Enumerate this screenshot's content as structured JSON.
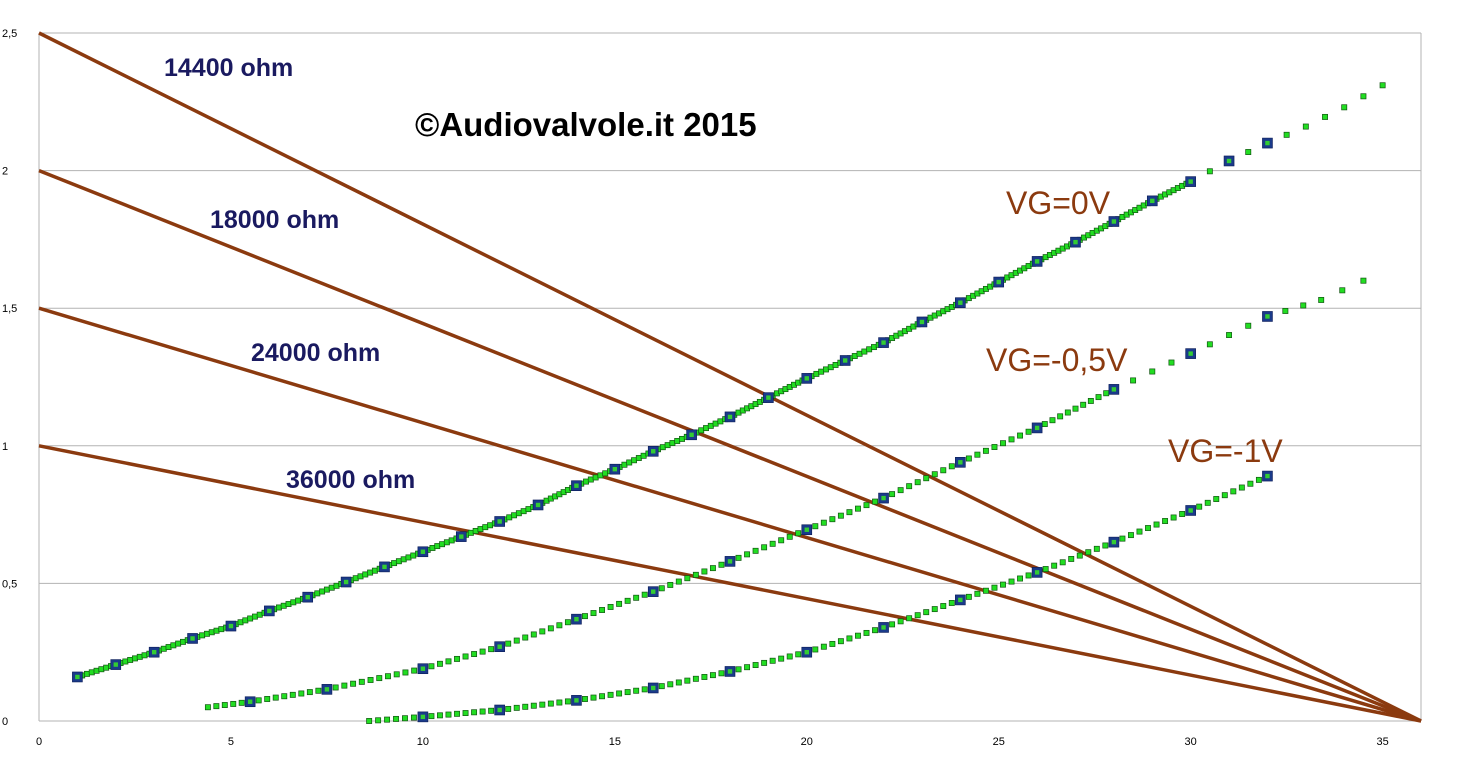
{
  "chart_data": {
    "type": "scatter",
    "title": "",
    "xlabel": "",
    "ylabel": "",
    "xlim": [
      0,
      36
    ],
    "ylim": [
      0,
      2.5
    ],
    "x_ticks": [
      "0",
      "5",
      "10",
      "15",
      "20",
      "25",
      "30",
      "35"
    ],
    "y_ticks": [
      "0",
      "0,5",
      "1",
      "1,5",
      "2",
      "2,5"
    ],
    "grid": true,
    "watermark": "©Audiovalvole.it 2015",
    "load_lines": [
      {
        "name": "14400 ohm",
        "points": [
          [
            0,
            2.5
          ],
          [
            36,
            0
          ]
        ]
      },
      {
        "name": "18000 ohm",
        "points": [
          [
            0,
            2.0
          ],
          [
            36,
            0
          ]
        ]
      },
      {
        "name": "24000 ohm",
        "points": [
          [
            0,
            1.5
          ],
          [
            36,
            0
          ]
        ]
      },
      {
        "name": "36000 ohm",
        "points": [
          [
            0,
            1.0
          ],
          [
            36,
            0
          ]
        ]
      }
    ],
    "series": [
      {
        "name": "VG=0V",
        "measured": [
          [
            1,
            0.16
          ],
          [
            2,
            0.205
          ],
          [
            3,
            0.25
          ],
          [
            4,
            0.3
          ],
          [
            5,
            0.345
          ],
          [
            6,
            0.4
          ],
          [
            7,
            0.45
          ],
          [
            8,
            0.505
          ],
          [
            9,
            0.56
          ],
          [
            10,
            0.615
          ],
          [
            11,
            0.67
          ],
          [
            12,
            0.725
          ],
          [
            13,
            0.785
          ],
          [
            14,
            0.855
          ],
          [
            15,
            0.915
          ],
          [
            16,
            0.98
          ],
          [
            17,
            1.04
          ],
          [
            18,
            1.105
          ],
          [
            19,
            1.175
          ],
          [
            20,
            1.245
          ],
          [
            21,
            1.31
          ],
          [
            22,
            1.375
          ],
          [
            23,
            1.45
          ],
          [
            24,
            1.52
          ],
          [
            25,
            1.595
          ],
          [
            26,
            1.67
          ],
          [
            27,
            1.74
          ],
          [
            28,
            1.815
          ],
          [
            29,
            1.89
          ],
          [
            30,
            1.96
          ],
          [
            31,
            2.035
          ],
          [
            32,
            2.1
          ]
        ],
        "fit": [
          [
            1,
            0.16
          ],
          [
            2,
            0.205
          ],
          [
            3,
            0.25
          ],
          [
            4,
            0.3
          ],
          [
            5,
            0.345
          ],
          [
            6,
            0.4
          ],
          [
            7,
            0.45
          ],
          [
            8,
            0.505
          ],
          [
            9,
            0.56
          ],
          [
            10,
            0.615
          ],
          [
            11,
            0.67
          ],
          [
            12,
            0.725
          ],
          [
            13,
            0.785
          ],
          [
            14,
            0.855
          ],
          [
            15,
            0.915
          ],
          [
            16,
            0.98
          ],
          [
            17,
            1.04
          ],
          [
            18,
            1.105
          ],
          [
            19,
            1.175
          ],
          [
            20,
            1.245
          ],
          [
            21,
            1.31
          ],
          [
            22,
            1.375
          ],
          [
            23,
            1.45
          ],
          [
            24,
            1.52
          ],
          [
            25,
            1.595
          ],
          [
            26,
            1.67
          ],
          [
            27,
            1.74
          ],
          [
            28,
            1.815
          ],
          [
            29,
            1.89
          ],
          [
            30,
            1.96
          ],
          [
            31,
            2.035
          ],
          [
            32,
            2.1
          ],
          [
            33,
            2.16
          ],
          [
            34,
            2.23
          ],
          [
            35,
            2.31
          ]
        ]
      },
      {
        "name": "VG=-0,5V",
        "measured": [
          [
            5.5,
            0.07
          ],
          [
            7.5,
            0.115
          ],
          [
            10,
            0.19
          ],
          [
            12,
            0.27
          ],
          [
            14,
            0.37
          ],
          [
            16,
            0.47
          ],
          [
            18,
            0.58
          ],
          [
            20,
            0.695
          ],
          [
            22,
            0.81
          ],
          [
            24,
            0.94
          ],
          [
            26,
            1.065
          ],
          [
            28,
            1.205
          ],
          [
            30,
            1.335
          ],
          [
            32,
            1.47
          ]
        ],
        "fit": [
          [
            4.4,
            0.05
          ],
          [
            5.5,
            0.07
          ],
          [
            7.5,
            0.115
          ],
          [
            10,
            0.19
          ],
          [
            12,
            0.27
          ],
          [
            14,
            0.37
          ],
          [
            16,
            0.47
          ],
          [
            18,
            0.58
          ],
          [
            20,
            0.695
          ],
          [
            22,
            0.81
          ],
          [
            24,
            0.94
          ],
          [
            26,
            1.065
          ],
          [
            28,
            1.205
          ],
          [
            30,
            1.335
          ],
          [
            32,
            1.47
          ],
          [
            33.4,
            1.53
          ],
          [
            34.5,
            1.6
          ]
        ]
      },
      {
        "name": "VG=-1V",
        "measured": [
          [
            10,
            0.015
          ],
          [
            12,
            0.04
          ],
          [
            14,
            0.075
          ],
          [
            16,
            0.12
          ],
          [
            18,
            0.18
          ],
          [
            20,
            0.25
          ],
          [
            22,
            0.34
          ],
          [
            24,
            0.44
          ],
          [
            26,
            0.54
          ],
          [
            28,
            0.65
          ],
          [
            30,
            0.765
          ],
          [
            32,
            0.89
          ]
        ],
        "fit": [
          [
            8.6,
            0.0
          ],
          [
            10,
            0.015
          ],
          [
            12,
            0.04
          ],
          [
            14,
            0.075
          ],
          [
            16,
            0.12
          ],
          [
            18,
            0.18
          ],
          [
            20,
            0.25
          ],
          [
            22,
            0.34
          ],
          [
            24,
            0.44
          ],
          [
            26,
            0.54
          ],
          [
            28,
            0.65
          ],
          [
            30,
            0.765
          ],
          [
            32,
            0.89
          ]
        ]
      }
    ]
  }
}
